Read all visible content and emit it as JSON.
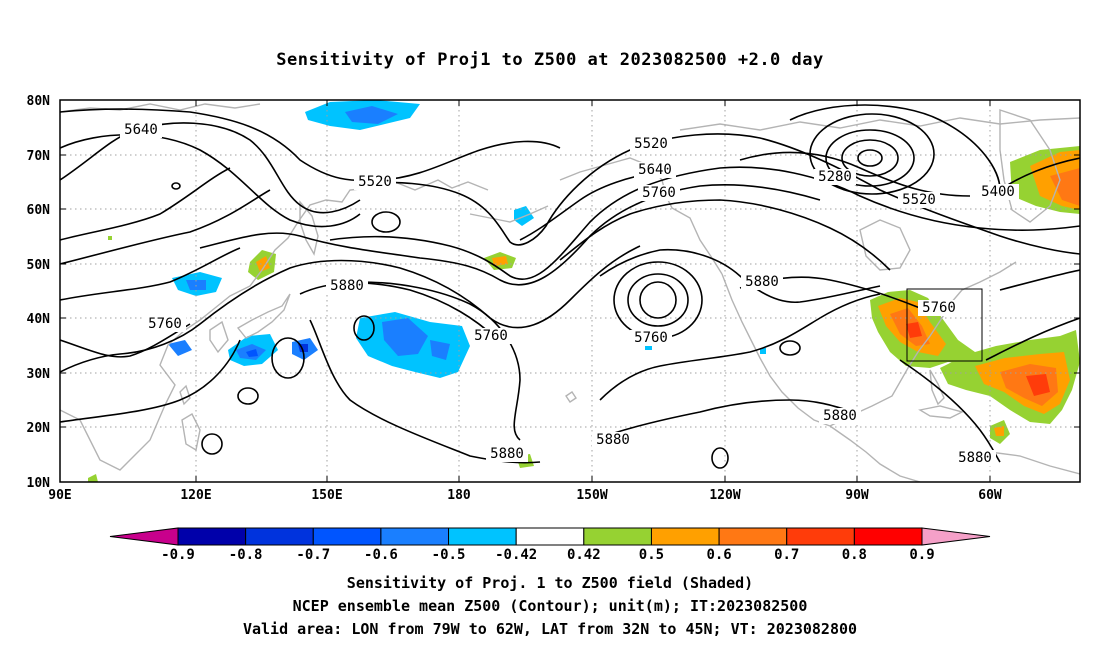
{
  "title": "Sensitivity of Proj1 to Z500 at 2023082500 +2.0 day",
  "lat_labels": [
    "80N",
    "70N",
    "60N",
    "50N",
    "40N",
    "30N",
    "20N",
    "10N"
  ],
  "lon_labels": [
    "90E",
    "120E",
    "150E",
    "180",
    "150W",
    "120W",
    "90W",
    "60W"
  ],
  "contour_labels": [
    "5640",
    "5520",
    "5520",
    "5640",
    "5760",
    "5280",
    "5520",
    "5400",
    "5880",
    "5880",
    "5760",
    "5760",
    "5760",
    "5760",
    "5880",
    "5880",
    "5880",
    "5880"
  ],
  "colorbar": {
    "tick_labels": [
      "-0.9",
      "-0.8",
      "-0.7",
      "-0.6",
      "-0.5",
      "-0.42",
      "0.42",
      "0.5",
      "0.6",
      "0.7",
      "0.8",
      "0.9"
    ],
    "colors": [
      "#c8008c",
      "#0000aa",
      "#0033dd",
      "#0055ff",
      "#1a7fff",
      "#00c3ff",
      "#ffffff",
      "#96d232",
      "#ffa000",
      "#ff7814",
      "#ff3c0a",
      "#ff0000",
      "#f5a0c8"
    ]
  },
  "footer": {
    "line1": "Sensitivity of Proj. 1 to Z500 field (Shaded)",
    "line2": "NCEP ensemble mean Z500 (Contour); unit(m); IT:2023082500",
    "line3": "Valid area: LON from 79W to 62W, LAT from 32N to 45N; VT: 2023082800"
  },
  "colors": {
    "contour": "#000000",
    "coastline": "#b4b4b4",
    "grid": "#a0a0a0",
    "frame": "#000000"
  }
}
